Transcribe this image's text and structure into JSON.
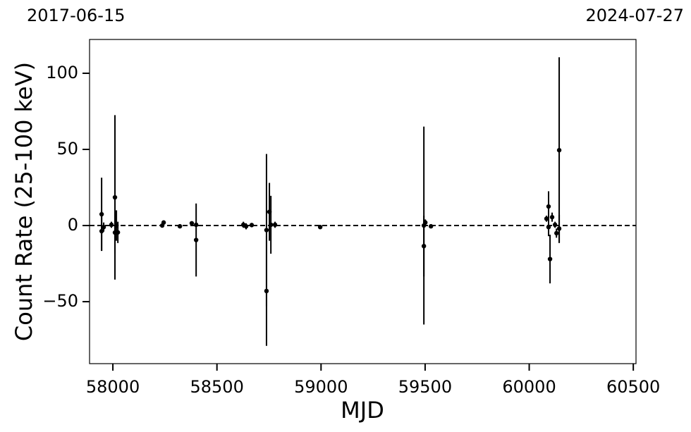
{
  "chart_data": {
    "type": "errorbar-scatter",
    "top_labels": [
      "2017-06-15",
      "2024-07-27"
    ],
    "xlabel": "MJD",
    "ylabel": "Count Rate (25-100 keV)",
    "x": [
      57946,
      57946,
      57956,
      57993,
      58010,
      58010,
      58024,
      58017,
      58237,
      58244,
      58322,
      58379,
      58400,
      58400,
      58627,
      58640,
      58667,
      58738,
      58738,
      58752,
      58759,
      58779,
      58996,
      59494,
      59494,
      59501,
      59528,
      60083,
      60093,
      60093,
      60100,
      60110,
      60124,
      60131,
      60144,
      60144
    ],
    "values": [
      7.4,
      -3.7,
      -1,
      0.5,
      18.5,
      -4.6,
      -4.5,
      0,
      0,
      2,
      -0.5,
      1.5,
      -9.5,
      0.5,
      0.5,
      -0.5,
      0.3,
      -43,
      -3,
      9,
      0.5,
      0.5,
      -1,
      0,
      -13.5,
      2,
      -0.5,
      4.5,
      12.5,
      -1,
      -22,
      5.5,
      0.5,
      -5,
      49.5,
      -2
    ],
    "errors": [
      24,
      13,
      3,
      2,
      54,
      14,
      7,
      10,
      1,
      1,
      1,
      1,
      24,
      1,
      2,
      2,
      1,
      36,
      50,
      19,
      19,
      2,
      1,
      65,
      20,
      2,
      1,
      2,
      10,
      6,
      16,
      3,
      2,
      3,
      61,
      9
    ],
    "color": "#000000",
    "hline": 0,
    "xlim": [
      57888,
      60513
    ],
    "ylim": [
      -90.7,
      122.2
    ],
    "xticks": [
      58000,
      58500,
      59000,
      59500,
      60000,
      60500
    ],
    "yticks": [
      {
        "value": -50,
        "label": "−50"
      },
      0,
      50,
      100
    ]
  }
}
